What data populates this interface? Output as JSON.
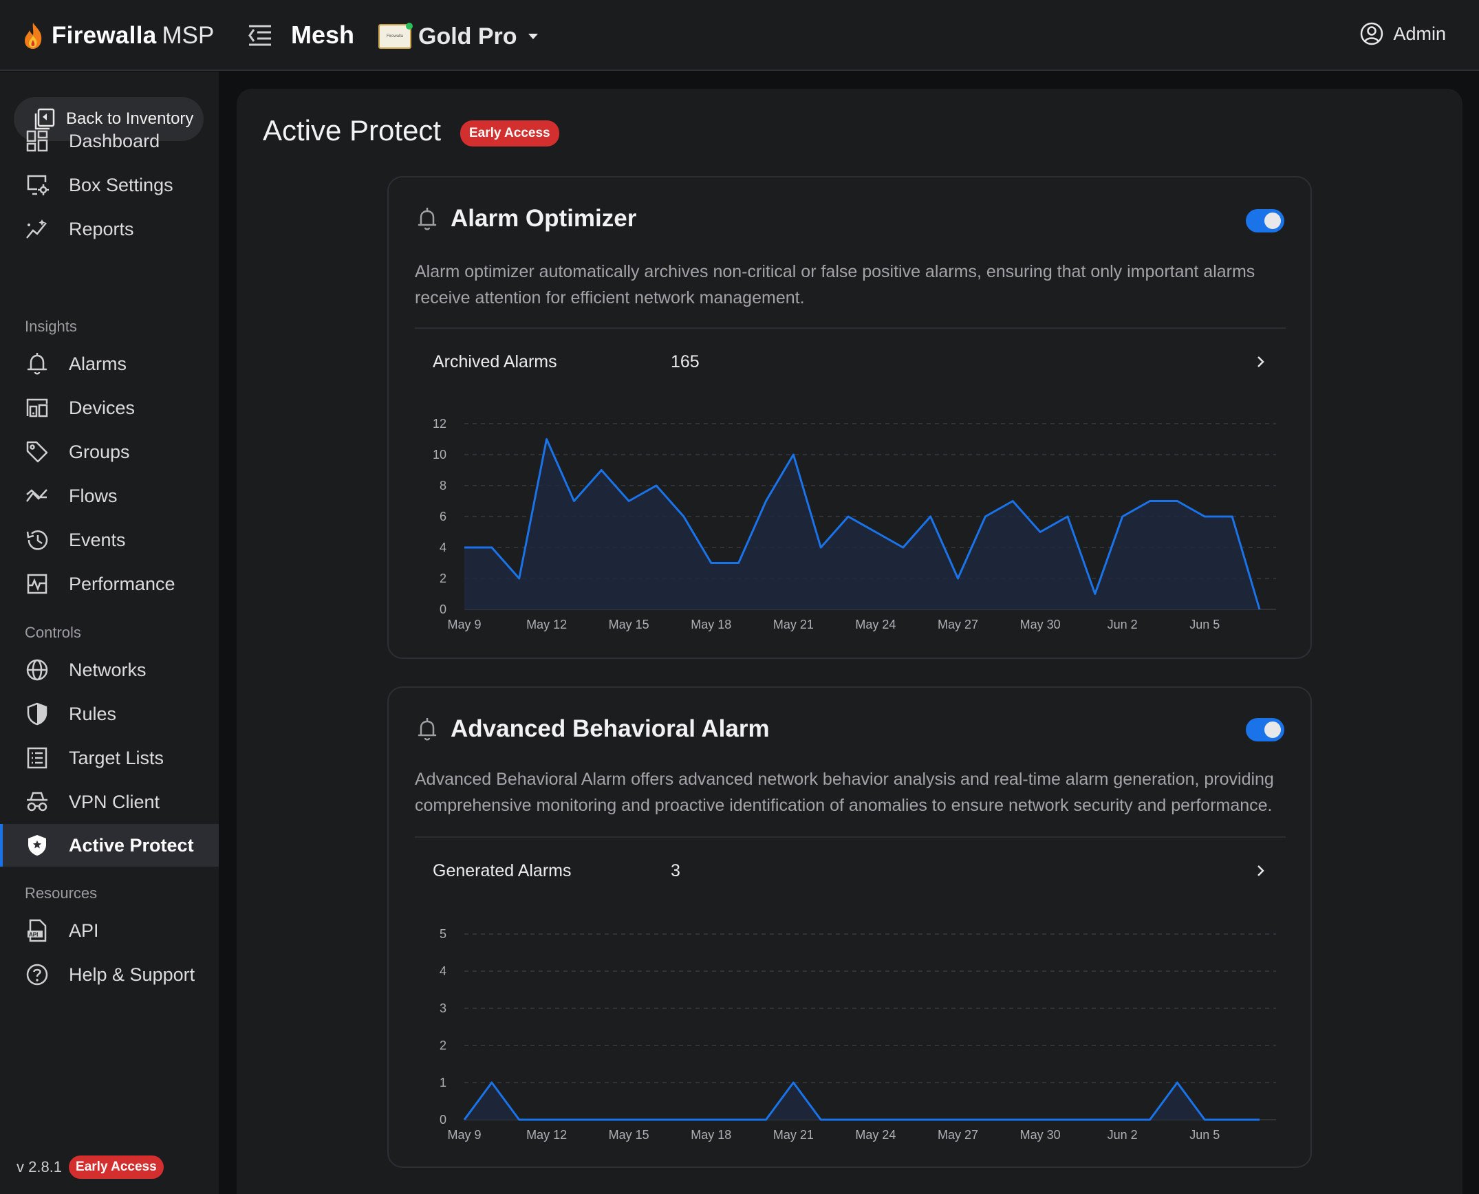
{
  "topbar": {
    "brand_name": "Firewalla",
    "brand_suffix": "MSP",
    "box_name": "Mesh",
    "box_thumb_text": "Firewalla",
    "box_model": "Gold Pro",
    "user_label": "Admin"
  },
  "sidebar": {
    "back_label": "Back to Inventory",
    "items_top": [
      {
        "label": "Dashboard",
        "icon": "dashboard-icon"
      },
      {
        "label": "Box Settings",
        "icon": "box-settings-icon"
      },
      {
        "label": "Reports",
        "icon": "reports-icon"
      }
    ],
    "insights_label": "Insights",
    "insights": [
      {
        "label": "Alarms",
        "icon": "bell-icon"
      },
      {
        "label": "Devices",
        "icon": "devices-icon"
      },
      {
        "label": "Groups",
        "icon": "tag-icon"
      },
      {
        "label": "Flows",
        "icon": "flows-icon"
      },
      {
        "label": "Events",
        "icon": "history-icon"
      },
      {
        "label": "Performance",
        "icon": "performance-icon"
      }
    ],
    "controls_label": "Controls",
    "controls": [
      {
        "label": "Networks",
        "icon": "globe-icon"
      },
      {
        "label": "Rules",
        "icon": "shield-icon"
      },
      {
        "label": "Target Lists",
        "icon": "list-icon"
      },
      {
        "label": "VPN Client",
        "icon": "vpn-icon"
      },
      {
        "label": "Active Protect",
        "icon": "shield-check-icon",
        "active": true
      }
    ],
    "resources_label": "Resources",
    "resources": [
      {
        "label": "API",
        "icon": "api-icon"
      },
      {
        "label": "Help & Support",
        "icon": "help-icon"
      }
    ],
    "version": "v 2.8.1",
    "version_badge": "Early Access"
  },
  "page": {
    "title": "Active Protect",
    "badge": "Early Access"
  },
  "cards": [
    {
      "title": "Alarm Optimizer",
      "enabled": true,
      "description": "Alarm optimizer automatically archives non-critical or false positive alarms, ensuring that only important alarms receive attention for efficient network management.",
      "stat_label": "Archived Alarms",
      "stat_value": "165"
    },
    {
      "title": "Advanced Behavioral Alarm",
      "enabled": true,
      "description": "Advanced Behavioral Alarm offers advanced network behavior analysis and real-time alarm generation, providing comprehensive monitoring and proactive identification of anomalies to ensure network security and performance.",
      "stat_label": "Generated Alarms",
      "stat_value": "3"
    }
  ],
  "colors": {
    "accent": "#1a73e8",
    "badge": "#d32f2f",
    "background": "#0f1011",
    "panel": "#1b1c1e"
  },
  "chart_data": [
    {
      "type": "area",
      "x": [
        "May 9",
        "May 10",
        "May 11",
        "May 12",
        "May 13",
        "May 14",
        "May 15",
        "May 16",
        "May 17",
        "May 18",
        "May 19",
        "May 20",
        "May 21",
        "May 22",
        "May 23",
        "May 24",
        "May 25",
        "May 26",
        "May 27",
        "May 28",
        "May 29",
        "May 30",
        "May 31",
        "Jun 1",
        "Jun 2",
        "Jun 3",
        "Jun 4",
        "Jun 5",
        "Jun 6",
        "Jun 7"
      ],
      "series": [
        {
          "values": [
            4,
            4,
            2,
            11,
            7,
            9,
            7,
            8,
            6,
            3,
            3,
            7,
            10,
            4,
            6,
            5,
            4,
            6,
            2,
            6,
            7,
            5,
            6,
            1,
            6,
            7,
            7,
            6,
            6,
            0
          ]
        }
      ],
      "x_ticks": [
        "May 9",
        "May 12",
        "May 15",
        "May 18",
        "May 21",
        "May 24",
        "May 27",
        "May 30",
        "Jun 2",
        "Jun 5"
      ],
      "y_ticks": [
        0,
        2,
        4,
        6,
        8,
        10,
        12
      ],
      "ylim": [
        0,
        12
      ],
      "grid": true,
      "line_color": "#1a73e8"
    },
    {
      "type": "area",
      "x": [
        "May 9",
        "May 10",
        "May 11",
        "May 12",
        "May 13",
        "May 14",
        "May 15",
        "May 16",
        "May 17",
        "May 18",
        "May 19",
        "May 20",
        "May 21",
        "May 22",
        "May 23",
        "May 24",
        "May 25",
        "May 26",
        "May 27",
        "May 28",
        "May 29",
        "May 30",
        "May 31",
        "Jun 1",
        "Jun 2",
        "Jun 3",
        "Jun 4",
        "Jun 5",
        "Jun 6",
        "Jun 7"
      ],
      "series": [
        {
          "values": [
            0,
            1,
            0,
            0,
            0,
            0,
            0,
            0,
            0,
            0,
            0,
            0,
            1,
            0,
            0,
            0,
            0,
            0,
            0,
            0,
            0,
            0,
            0,
            0,
            0,
            0,
            1,
            0,
            0,
            0
          ]
        }
      ],
      "x_ticks": [
        "May 9",
        "May 12",
        "May 15",
        "May 18",
        "May 21",
        "May 24",
        "May 27",
        "May 30",
        "Jun 2",
        "Jun 5"
      ],
      "y_ticks": [
        0,
        1,
        2,
        3,
        4,
        5
      ],
      "ylim": [
        0,
        5
      ],
      "grid": true,
      "line_color": "#1a73e8"
    }
  ]
}
